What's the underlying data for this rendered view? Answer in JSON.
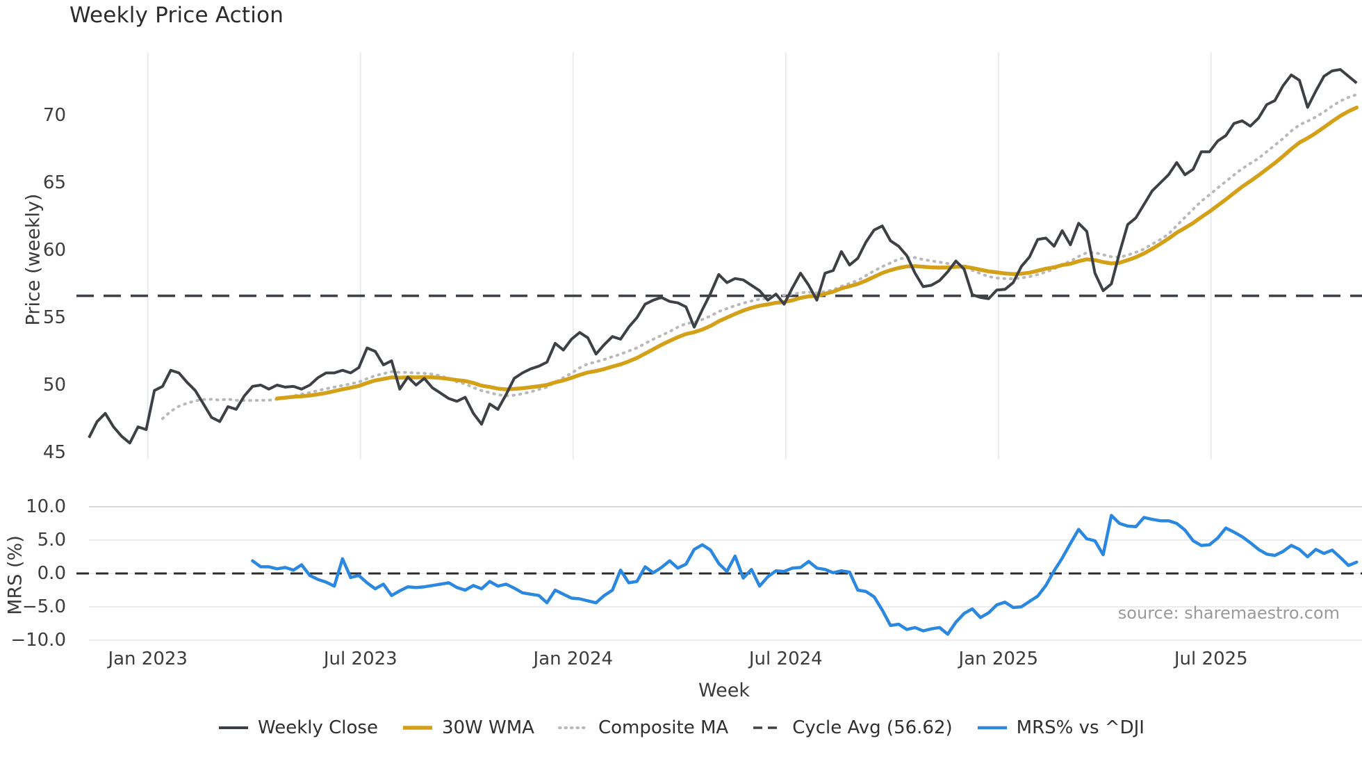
{
  "title": "Weekly Price Action",
  "price_panel": {
    "ylabel": "Price (weekly)",
    "ytick_labels": [
      "45",
      "50",
      "55",
      "60",
      "65",
      "70"
    ],
    "yticks": [
      45,
      50,
      55,
      60,
      65,
      70
    ],
    "cycle_avg_value": 56.62
  },
  "mrs_panel": {
    "ylabel": "MRS (%)",
    "ytick_labels": [
      "10.0",
      "5.0",
      "0.0",
      "−5.0",
      "−10.0"
    ],
    "yticks": [
      10,
      5,
      0,
      -5,
      -10
    ],
    "zero_line": 0
  },
  "x_axis": {
    "label": "Week",
    "tick_labels": [
      "Jan 2023",
      "Jul 2023",
      "Jan 2024",
      "Jul 2024",
      "Jan 2025",
      "Jul 2025"
    ]
  },
  "source_text": "source: sharemaestro.com",
  "legend": [
    {
      "label": "Weekly Close",
      "color": "#3d4045",
      "style": "solid",
      "width": 4
    },
    {
      "label": "30W WMA",
      "color": "#d4a017",
      "style": "solid",
      "width": 5.5
    },
    {
      "label": "Composite MA",
      "color": "#b9b9b9",
      "style": "dotted",
      "width": 4
    },
    {
      "label": "Cycle Avg (56.62)",
      "color": "#3d4045",
      "style": "dashed",
      "width": 3.5
    },
    {
      "label": "MRS% vs ^DJI",
      "color": "#2b88e0",
      "style": "solid",
      "width": 4.5
    }
  ],
  "chart_data": {
    "type": "line",
    "panels": 2,
    "x_unit": "week",
    "xtick_labels": [
      "Jan 2023",
      "Jul 2023",
      "Jan 2024",
      "Jul 2024",
      "Jan 2025",
      "Jul 2025"
    ],
    "xtick_week_indices": [
      7.2,
      33.2,
      59.2,
      85.2,
      111.2,
      137.2
    ],
    "weeks_per_tick": 26,
    "price_ylim": [
      44.1,
      74.9
    ],
    "mrs_ylim": [
      -10.7,
      10.4
    ],
    "grid": {
      "price_vertical": true,
      "mrs_horizontal": true
    },
    "legend_position": "bottom-center",
    "series": [
      {
        "name": "Weekly Close",
        "panel": "price",
        "color": "#3d4045",
        "style": "solid",
        "values": [
          46.1,
          47.3,
          47.9,
          46.9,
          46.2,
          45.7,
          46.9,
          46.7,
          49.6,
          49.9,
          51.1,
          50.9,
          50.2,
          49.6,
          48.6,
          47.6,
          47.3,
          48.4,
          48.2,
          49.2,
          49.9,
          50.0,
          49.7,
          50.0,
          49.85,
          49.9,
          49.7,
          50.0,
          50.55,
          50.9,
          50.9,
          51.1,
          50.9,
          51.3,
          52.75,
          52.5,
          51.5,
          51.8,
          49.7,
          50.6,
          50.0,
          50.5,
          49.8,
          49.4,
          49.0,
          48.8,
          49.1,
          47.9,
          47.1,
          48.6,
          48.2,
          49.3,
          50.5,
          50.9,
          51.2,
          51.4,
          51.7,
          53.1,
          52.6,
          53.4,
          53.9,
          53.5,
          52.3,
          53.0,
          53.6,
          53.4,
          54.3,
          55.0,
          56.0,
          56.3,
          56.5,
          56.2,
          56.1,
          55.8,
          54.3,
          55.6,
          56.8,
          58.2,
          57.6,
          57.9,
          57.8,
          57.4,
          57.0,
          56.3,
          56.75,
          56.0,
          57.2,
          58.3,
          57.4,
          56.3,
          58.3,
          58.5,
          59.9,
          58.9,
          59.4,
          60.6,
          61.5,
          61.8,
          60.7,
          60.3,
          59.6,
          58.3,
          57.3,
          57.4,
          57.75,
          58.4,
          59.2,
          58.6,
          56.7,
          56.5,
          56.4,
          57.05,
          57.1,
          57.6,
          58.8,
          59.5,
          60.8,
          60.9,
          60.3,
          61.45,
          60.4,
          62.0,
          61.4,
          58.3,
          57.0,
          57.5,
          59.8,
          61.9,
          62.4,
          63.4,
          64.4,
          65.0,
          65.6,
          66.5,
          65.6,
          66.0,
          67.3,
          67.3,
          68.1,
          68.5,
          69.4,
          69.6,
          69.2,
          69.8,
          70.8,
          71.1,
          72.2,
          73.0,
          72.6,
          70.6,
          71.8,
          72.9,
          73.3,
          73.4,
          72.9,
          72.4
        ]
      },
      {
        "name": "30W WMA",
        "panel": "price",
        "color": "#d4a017",
        "style": "solid",
        "derived_from": "Weekly Close",
        "method": "linear-weighted moving average, window 30",
        "plot_from_index": 23
      },
      {
        "name": "Composite MA",
        "panel": "price",
        "color": "#b9b9b9",
        "style": "dotted",
        "derived_from": "Weekly Close",
        "method": "mean of WMA30 and SMA10",
        "plot_from_index": 9
      },
      {
        "name": "Cycle Avg (56.62)",
        "panel": "price",
        "color": "#3d4045",
        "style": "dashed",
        "type": "hline",
        "value": 56.62
      },
      {
        "name": "MRS% vs ^DJI",
        "panel": "mrs",
        "color": "#2b88e0",
        "style": "solid",
        "values": [
          null,
          null,
          null,
          null,
          null,
          null,
          null,
          null,
          null,
          null,
          null,
          null,
          null,
          null,
          null,
          null,
          null,
          null,
          null,
          null,
          1.9,
          1.0,
          1.0,
          0.7,
          0.9,
          0.5,
          1.3,
          -0.3,
          -0.9,
          -1.3,
          -1.9,
          2.2,
          -0.6,
          -0.3,
          -1.4,
          -2.3,
          -1.6,
          -3.3,
          -2.6,
          -2.0,
          -2.1,
          -2.0,
          -1.8,
          -1.6,
          -1.4,
          -2.1,
          -2.5,
          -1.8,
          -2.3,
          -1.2,
          -1.9,
          -1.6,
          -2.2,
          -2.9,
          -3.1,
          -3.3,
          -4.4,
          -2.5,
          -3.1,
          -3.7,
          -3.8,
          -4.1,
          -4.4,
          -3.3,
          -2.5,
          0.5,
          -1.4,
          -1.2,
          1.0,
          0.1,
          0.9,
          1.9,
          0.8,
          1.4,
          3.6,
          4.3,
          3.5,
          1.5,
          0.3,
          2.6,
          -0.7,
          0.6,
          -1.9,
          -0.5,
          0.4,
          0.3,
          0.8,
          0.9,
          1.8,
          0.8,
          0.6,
          0.1,
          0.4,
          0.2,
          -2.5,
          -2.7,
          -3.5,
          -5.5,
          -7.8,
          -7.6,
          -8.4,
          -8.1,
          -8.6,
          -8.3,
          -8.1,
          -9.1,
          -7.3,
          -6.0,
          -5.3,
          -6.6,
          -5.9,
          -4.7,
          -4.3,
          -5.1,
          -5.0,
          -4.2,
          -3.4,
          -1.8,
          0.4,
          2.3,
          4.5,
          6.6,
          5.2,
          4.9,
          2.8,
          8.7,
          7.5,
          7.1,
          7.0,
          8.4,
          8.1,
          7.9,
          7.9,
          7.5,
          6.5,
          4.9,
          4.2,
          4.3,
          5.3,
          6.8,
          6.2,
          5.5,
          4.6,
          3.6,
          2.9,
          2.7,
          3.3,
          4.2,
          3.6,
          2.5,
          3.6,
          3.0,
          3.5,
          2.4,
          1.2,
          1.7
        ]
      }
    ]
  }
}
